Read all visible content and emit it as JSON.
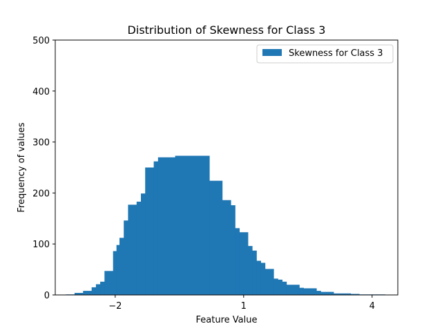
{
  "chart_data": {
    "type": "bar",
    "title": "Distribution of Skewness for Class 3",
    "xlabel": "Feature Value",
    "ylabel": "Frequency of values",
    "xlim": [
      -3.4,
      4.6
    ],
    "ylim": [
      0,
      500
    ],
    "xticks": [
      -2,
      1,
      4
    ],
    "xtick_labels": [
      "−2",
      "1",
      "4"
    ],
    "yticks": [
      0,
      100,
      200,
      300,
      400,
      500
    ],
    "ytick_labels": [
      "0",
      "100",
      "200",
      "300",
      "400",
      "500"
    ],
    "grid": false,
    "legend": {
      "position": "top-right",
      "entries": [
        "Skewness for Class 3"
      ]
    },
    "series": [
      {
        "name": "Skewness for Class 3",
        "color": "#1f77b4",
        "bins": [
          [
            -3.15,
            -2.95,
            1
          ],
          [
            -2.95,
            -2.75,
            4
          ],
          [
            -2.75,
            -2.55,
            8
          ],
          [
            -2.55,
            -2.45,
            15
          ],
          [
            -2.45,
            -2.35,
            21
          ],
          [
            -2.35,
            -2.25,
            26
          ],
          [
            -2.25,
            -2.05,
            47
          ],
          [
            -2.05,
            -1.97,
            86
          ],
          [
            -1.97,
            -1.9,
            98
          ],
          [
            -1.9,
            -1.8,
            112
          ],
          [
            -1.8,
            -1.7,
            146
          ],
          [
            -1.7,
            -1.5,
            177
          ],
          [
            -1.5,
            -1.4,
            183
          ],
          [
            -1.4,
            -1.3,
            199
          ],
          [
            -1.3,
            -1.1,
            250
          ],
          [
            -1.1,
            -1.0,
            262
          ],
          [
            -1.0,
            -0.6,
            270
          ],
          [
            -0.6,
            0.2,
            273
          ],
          [
            0.2,
            0.5,
            224
          ],
          [
            0.5,
            0.7,
            186
          ],
          [
            0.7,
            0.8,
            176
          ],
          [
            0.8,
            0.9,
            131
          ],
          [
            0.9,
            1.1,
            123
          ],
          [
            1.1,
            1.2,
            96
          ],
          [
            1.2,
            1.3,
            87
          ],
          [
            1.3,
            1.4,
            67
          ],
          [
            1.4,
            1.5,
            63
          ],
          [
            1.5,
            1.7,
            51
          ],
          [
            1.7,
            1.8,
            32
          ],
          [
            1.8,
            1.9,
            30
          ],
          [
            1.9,
            2.0,
            26
          ],
          [
            2.0,
            2.3,
            20
          ],
          [
            2.3,
            2.4,
            14
          ],
          [
            2.4,
            2.7,
            13
          ],
          [
            2.7,
            2.8,
            8
          ],
          [
            2.8,
            3.1,
            6
          ],
          [
            3.1,
            3.5,
            3
          ],
          [
            3.5,
            3.7,
            2
          ],
          [
            3.7,
            4.1,
            1
          ],
          [
            4.1,
            4.3,
            1
          ]
        ]
      }
    ]
  }
}
